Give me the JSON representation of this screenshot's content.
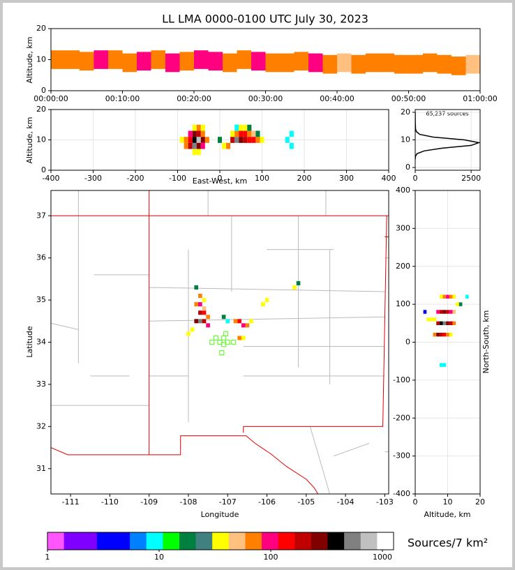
{
  "chart_data": [
    {
      "type": "heatmap",
      "title": "LL LMA 0000-0100 UTC July 30, 2023",
      "y_label": "Altitude, km",
      "xlim": [
        0,
        60
      ],
      "xticks": [
        {
          "value": 0,
          "label": "00:00:00"
        },
        {
          "value": 10,
          "label": "00:10:00"
        },
        {
          "value": 20,
          "label": "00:20:00"
        },
        {
          "value": 30,
          "label": "00:30:00"
        },
        {
          "value": 40,
          "label": "00:40:00"
        },
        {
          "value": 50,
          "label": "00:50:00"
        },
        {
          "value": 60,
          "label": "01:00:00"
        }
      ],
      "ylim": [
        0,
        20
      ],
      "yticks": [
        0,
        10,
        20
      ],
      "grid": false,
      "x": [
        1,
        3,
        5,
        7,
        9,
        11,
        13,
        15,
        17,
        19,
        21,
        23,
        25,
        27,
        29,
        31,
        33,
        35,
        37,
        39,
        41,
        43,
        45,
        47,
        49,
        51,
        53,
        55,
        57,
        59
      ],
      "y": [
        10,
        10,
        9.5,
        10,
        10,
        9,
        9.5,
        10,
        9,
        9.5,
        10,
        9.5,
        9,
        10,
        9.5,
        9,
        9,
        9.5,
        9,
        8.5,
        9,
        8.5,
        9,
        9,
        8.5,
        8.5,
        9,
        8.5,
        8,
        8.5
      ],
      "counts": [
        60,
        80,
        70,
        90,
        60,
        80,
        100,
        70,
        90,
        80,
        100,
        90,
        80,
        70,
        90,
        60,
        80,
        70,
        90,
        60,
        50,
        70,
        60,
        80,
        70,
        60,
        70,
        80,
        60,
        50
      ]
    },
    {
      "type": "heatmap",
      "x_label": "East-West, km",
      "y_label": "Altitude, km",
      "xlim": [
        -400,
        400
      ],
      "xticks": [
        -400,
        -300,
        -200,
        -100,
        0,
        100,
        200,
        300,
        400
      ],
      "ylim": [
        0,
        20
      ],
      "yticks": [
        0,
        10,
        20
      ],
      "grid": true,
      "x": [
        -90,
        -80,
        -70,
        -60,
        -50,
        -40,
        -30,
        -80,
        -70,
        -60,
        -50,
        -40,
        -70,
        -60,
        -50,
        -40,
        -60,
        -50,
        -40,
        -60,
        -50,
        0,
        10,
        20,
        30,
        40,
        50,
        60,
        70,
        80,
        90,
        100,
        30,
        40,
        50,
        60,
        70,
        80,
        90,
        40,
        50,
        60,
        70,
        160,
        170,
        170
      ],
      "y": [
        10,
        10,
        10,
        10,
        10,
        10,
        10,
        8,
        8,
        8,
        8,
        8,
        12,
        12,
        12,
        12,
        14,
        14,
        14,
        6,
        6,
        10,
        8,
        8,
        10,
        10,
        10,
        10,
        10,
        10,
        10,
        10,
        12,
        12,
        12,
        12,
        12,
        12,
        12,
        14,
        14,
        14,
        14,
        10,
        12,
        8
      ],
      "counts": [
        30,
        80,
        150,
        400,
        700,
        300,
        80,
        60,
        200,
        500,
        300,
        100,
        100,
        300,
        200,
        60,
        40,
        60,
        30,
        40,
        30,
        20,
        40,
        60,
        200,
        500,
        300,
        200,
        150,
        120,
        80,
        40,
        40,
        80,
        150,
        120,
        80,
        50,
        20,
        10,
        30,
        40,
        20,
        8,
        10,
        8
      ]
    },
    {
      "type": "line",
      "annotation": "65,237 sources",
      "xlim": [
        0,
        2900
      ],
      "xticks": [
        0,
        2500
      ],
      "ylim": [
        -1,
        21
      ],
      "yticks": [
        0,
        10,
        20
      ],
      "grid": true,
      "x": [
        0,
        10,
        80,
        400,
        1200,
        2500,
        2850,
        2200,
        800,
        200,
        50,
        15,
        5,
        0
      ],
      "y": [
        3,
        4,
        5,
        6,
        7,
        8,
        9,
        10,
        11,
        12,
        13,
        14,
        16,
        20
      ]
    },
    {
      "type": "heatmap",
      "x_label": "Longitude",
      "y_label": "Latitude",
      "xlim": [
        -111.5,
        -102.9
      ],
      "xticks": [
        -111,
        -110,
        -109,
        -108,
        -107,
        -106,
        -105,
        -104,
        -103
      ],
      "ylim": [
        30.4,
        37.6
      ],
      "yticks": [
        31,
        32,
        33,
        34,
        35,
        36,
        37
      ],
      "grid": false,
      "x": [
        -107.8,
        -107.7,
        -107.6,
        -107.5,
        -107.7,
        -107.6,
        -107.5,
        -107.8,
        -107.7,
        -107.6,
        -107.7,
        -107.6,
        -107.9,
        -108.0,
        -107.8,
        -106.8,
        -106.7,
        -106.6,
        -106.5,
        -106.4,
        -106.7,
        -106.6,
        -106.1,
        -106.0,
        -105.3,
        -105.2,
        -107.1,
        -107.0
      ],
      "y": [
        34.5,
        34.5,
        34.5,
        34.4,
        34.7,
        34.7,
        34.6,
        34.9,
        34.9,
        34.8,
        35.1,
        35.0,
        34.3,
        34.2,
        35.3,
        34.5,
        34.5,
        34.4,
        34.4,
        34.5,
        34.1,
        34.1,
        34.9,
        35.0,
        35.3,
        35.4,
        34.6,
        34.5
      ],
      "counts": [
        300,
        500,
        200,
        100,
        200,
        150,
        80,
        60,
        100,
        50,
        60,
        40,
        40,
        30,
        20,
        80,
        150,
        100,
        60,
        40,
        60,
        30,
        40,
        30,
        40,
        20,
        20,
        10
      ]
    },
    {
      "type": "heatmap",
      "x_label": "Altitude, km",
      "y_label": "North-South, km",
      "xlim": [
        0,
        20
      ],
      "xticks": [
        0,
        10,
        20
      ],
      "ylim": [
        -400,
        400
      ],
      "yticks": [
        -400,
        -300,
        -200,
        -100,
        0,
        100,
        200,
        300,
        400
      ],
      "grid": true,
      "x": [
        7,
        8,
        9,
        10,
        11,
        12,
        6,
        7,
        8,
        9,
        10,
        11,
        7,
        8,
        9,
        10,
        11,
        12,
        8,
        9,
        10,
        11,
        12,
        4,
        5,
        6,
        13,
        14,
        8,
        9,
        3,
        16
      ],
      "y": [
        50,
        50,
        50,
        50,
        50,
        50,
        20,
        20,
        20,
        20,
        20,
        20,
        80,
        80,
        80,
        80,
        80,
        80,
        120,
        120,
        120,
        120,
        120,
        60,
        60,
        60,
        100,
        100,
        -60,
        -60,
        80,
        120
      ],
      "counts": [
        200,
        400,
        500,
        300,
        200,
        80,
        80,
        300,
        200,
        150,
        80,
        40,
        100,
        200,
        250,
        200,
        100,
        50,
        40,
        80,
        100,
        80,
        40,
        30,
        30,
        40,
        30,
        20,
        10,
        10,
        5,
        8
      ]
    },
    {
      "type": "colorbar",
      "label": "Sources/7 km²",
      "lim": [
        1,
        1259
      ],
      "ticks": [
        1,
        10,
        100,
        1000
      ],
      "log": true,
      "colors": [
        "#ff55ff",
        "#8000ff",
        "#8000ff",
        "#0000ff",
        "#0000ff",
        "#0080ff",
        "#00ffff",
        "#00ff00",
        "#008040",
        "#408080",
        "#ffff00",
        "#ffc080",
        "#ff8000",
        "#ff0080",
        "#ff0000",
        "#c00000",
        "#800000",
        "#000000",
        "#808080",
        "#c0c0c0",
        "#ffffff"
      ]
    }
  ]
}
